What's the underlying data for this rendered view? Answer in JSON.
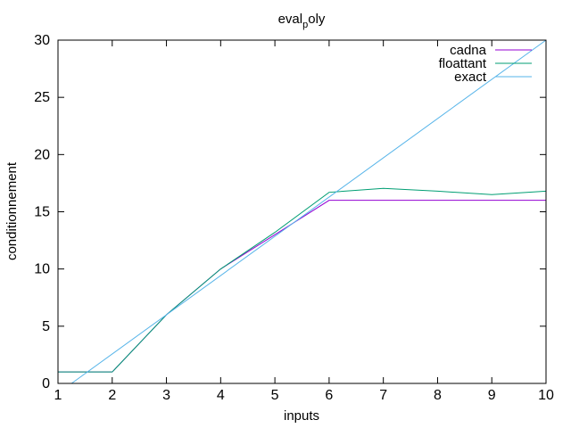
{
  "chart_data": {
    "type": "line",
    "title_parts": [
      "eval",
      "p",
      "oly"
    ],
    "xlabel": "inputs",
    "ylabel": "conditionnement",
    "xlim": [
      1,
      10
    ],
    "ylim": [
      0,
      30
    ],
    "xticks": [
      1,
      2,
      3,
      4,
      5,
      6,
      7,
      8,
      9,
      10
    ],
    "yticks": [
      0,
      5,
      10,
      15,
      20,
      25,
      30
    ],
    "grid": false,
    "legend_position": "top-right",
    "series": [
      {
        "name": "cadna",
        "color": "#9400d3",
        "x": [
          1,
          2,
          3,
          4,
          5,
          6,
          7,
          8,
          9,
          10
        ],
        "y": [
          1,
          1,
          6,
          10,
          13,
          16,
          16,
          16,
          16,
          16
        ]
      },
      {
        "name": "floattant",
        "color": "#009e73",
        "x": [
          1,
          2,
          3,
          4,
          5,
          6,
          7,
          8,
          9,
          10
        ],
        "y": [
          1,
          1,
          6,
          10,
          13.2,
          16.7,
          17.05,
          16.8,
          16.5,
          16.8
        ]
      },
      {
        "name": "exact",
        "color": "#56b4e9",
        "x": [
          1.25,
          10
        ],
        "y": [
          0,
          30
        ]
      }
    ]
  }
}
